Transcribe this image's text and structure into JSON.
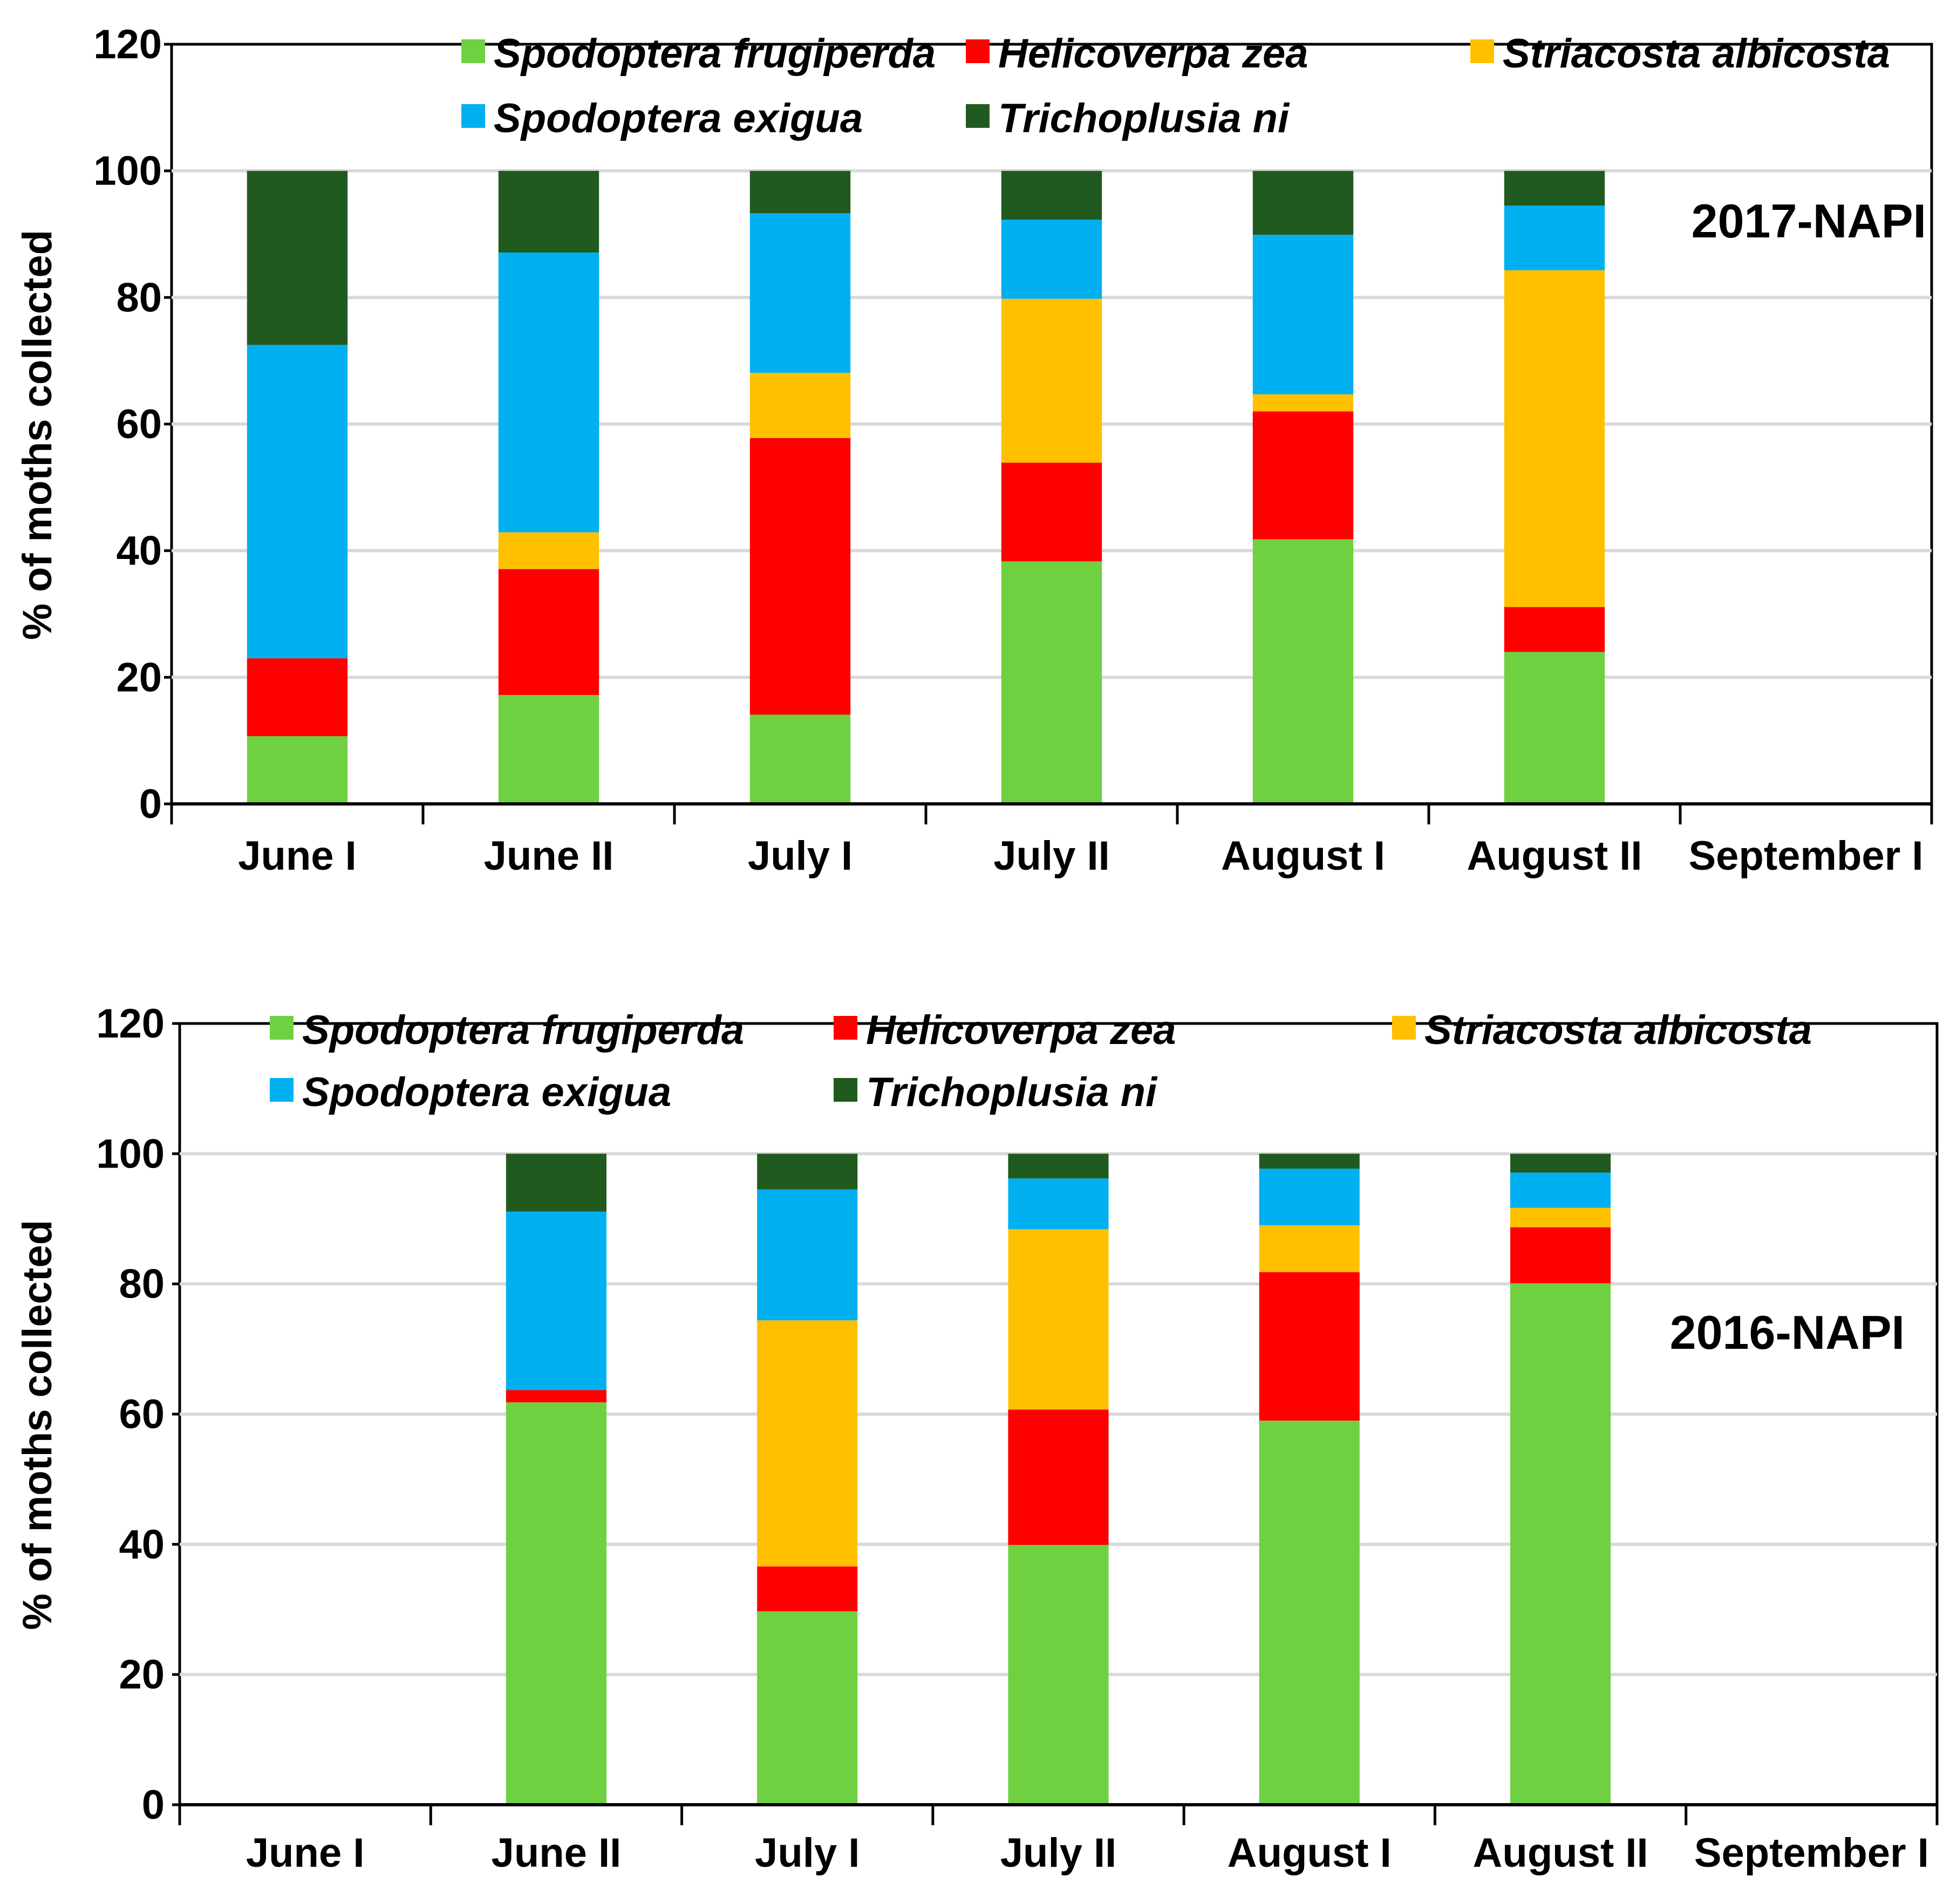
{
  "colors": {
    "Spodoptera frugiperda": "#6fd142",
    "Helicoverpa zea": "#ff0000",
    "Striacosta albicosta": "#ffc000",
    "Spodoptera exigua": "#00b0f0",
    "Trichoplusia ni": "#215a1e"
  },
  "chart_data": [
    {
      "type": "bar",
      "stacked": true,
      "panel_label": "2017-NAPI",
      "ylabel": "% of moths collected",
      "xlabel": "",
      "ylim": [
        0,
        120
      ],
      "yticks": [
        "0",
        "20",
        "40",
        "60",
        "80",
        "100",
        "120"
      ],
      "grid": true,
      "legend_position": "top",
      "categories": [
        "June I",
        "June II",
        "July I",
        "July II",
        "August I",
        "August II",
        "September I"
      ],
      "series": [
        {
          "name": "Spodoptera frugiperda",
          "values": [
            10.7,
            17.2,
            14.1,
            38.3,
            41.8,
            24.0,
            0
          ]
        },
        {
          "name": "Helicoverpa zea",
          "values": [
            12.3,
            19.9,
            43.7,
            15.6,
            20.2,
            7.1,
            0
          ]
        },
        {
          "name": "Striacosta albicosta",
          "values": [
            0,
            5.8,
            10.3,
            25.9,
            2.7,
            53.2,
            0
          ]
        },
        {
          "name": "Spodoptera exigua",
          "values": [
            49.5,
            44.2,
            25.2,
            12.5,
            25.2,
            10.2,
            0
          ]
        },
        {
          "name": "Trichoplusia ni",
          "values": [
            27.5,
            12.9,
            6.7,
            7.7,
            10.1,
            5.5,
            0
          ]
        }
      ]
    },
    {
      "type": "bar",
      "stacked": true,
      "panel_label": "2016-NAPI",
      "ylabel": "% of moths collected",
      "xlabel": "",
      "ylim": [
        0,
        120
      ],
      "yticks": [
        "0",
        "20",
        "40",
        "60",
        "80",
        "100",
        "120"
      ],
      "grid": true,
      "legend_position": "top",
      "categories": [
        "June I",
        "June II",
        "July I",
        "July II",
        "August I",
        "August II",
        "September I"
      ],
      "series": [
        {
          "name": "Spodoptera frugiperda",
          "values": [
            0,
            61.8,
            29.7,
            39.9,
            59.0,
            80.1,
            0
          ]
        },
        {
          "name": "Helicoverpa zea",
          "values": [
            0,
            1.9,
            6.9,
            20.8,
            22.8,
            8.6,
            0
          ]
        },
        {
          "name": "Striacosta albicosta",
          "values": [
            0,
            0,
            37.8,
            27.7,
            7.2,
            3.0,
            0
          ]
        },
        {
          "name": "Spodoptera exigua",
          "values": [
            0,
            27.4,
            20.1,
            7.8,
            8.7,
            5.4,
            0
          ]
        },
        {
          "name": "Trichoplusia ni",
          "values": [
            0,
            8.9,
            5.5,
            3.8,
            2.3,
            2.9,
            0
          ]
        }
      ]
    }
  ]
}
